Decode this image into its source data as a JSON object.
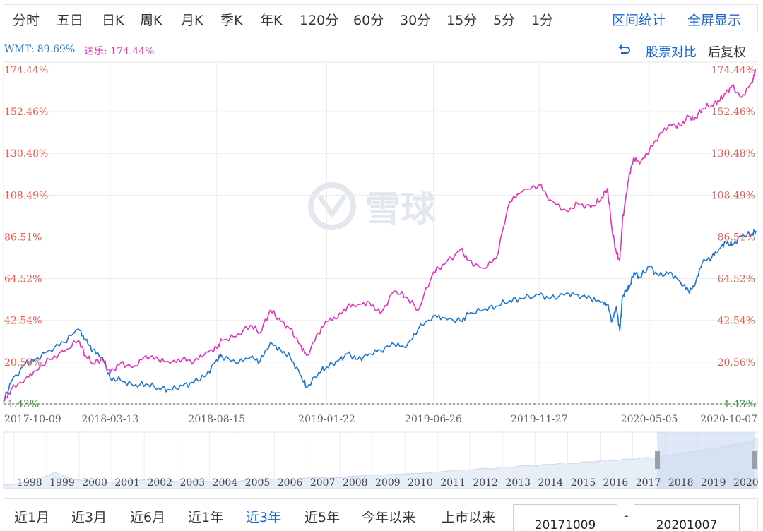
{
  "toolbar": {
    "periods": [
      "分时",
      "五日",
      "日K",
      "周K",
      "月K",
      "季K",
      "年K",
      "120分",
      "60分",
      "30分",
      "15分",
      "5分",
      "1分"
    ],
    "interval_stats": "区间统计",
    "fullscreen": "全屏显示"
  },
  "legend": {
    "wmt": "WMT: 89.69%",
    "dollar": "达乐: 174.44%"
  },
  "tools": {
    "compare": "股票对比",
    "adjust": "后复权"
  },
  "watermark": "雪球",
  "range_tabs": {
    "items": [
      "近1月",
      "近3月",
      "近6月",
      "近1年",
      "近3年",
      "近5年",
      "今年以来",
      "上市以来"
    ],
    "active_index": 4,
    "start_date": "20171009",
    "separator": "-",
    "end_date": "20201007"
  },
  "colors": {
    "wmt": "#1f77d4",
    "dollar": "#e331bb",
    "axis_red": "#e65a4d",
    "axis_green": "#3d9a3d",
    "link_blue": "#1a66d1"
  },
  "chart_data": {
    "type": "line",
    "y_unit": "%",
    "y_ticks": [
      "174.44%",
      "152.46%",
      "130.48%",
      "108.49%",
      "86.51%",
      "64.52%",
      "42.54%",
      "20.56%",
      "-1.43%"
    ],
    "ylim": [
      -1.43,
      174.44
    ],
    "x_ticks": [
      "2017-10-09",
      "2018-03-13",
      "2018-08-15",
      "2019-01-22",
      "2019-06-26",
      "2019-11-27",
      "2020-05-05",
      "2020-10-07"
    ],
    "grid": true,
    "series": [
      {
        "name": "WMT",
        "end_value": 89.69,
        "x": [
          "2017-10-09",
          "2017-10-20",
          "2017-11-10",
          "2017-11-24",
          "2017-12-15",
          "2018-01-05",
          "2018-01-26",
          "2018-02-05",
          "2018-02-16",
          "2018-03-02",
          "2018-03-13",
          "2018-03-28",
          "2018-04-16",
          "2018-05-04",
          "2018-05-22",
          "2018-06-08",
          "2018-06-26",
          "2018-07-13",
          "2018-07-31",
          "2018-08-15",
          "2018-08-22",
          "2018-09-12",
          "2018-10-03",
          "2018-10-17",
          "2018-11-01",
          "2018-11-16",
          "2018-11-30",
          "2018-12-14",
          "2018-12-24",
          "2019-01-10",
          "2019-01-22",
          "2019-02-07",
          "2019-02-21",
          "2019-03-08",
          "2019-03-25",
          "2019-04-10",
          "2019-04-30",
          "2019-05-17",
          "2019-06-04",
          "2019-06-26",
          "2019-07-12",
          "2019-08-05",
          "2019-08-16",
          "2019-09-06",
          "2019-09-25",
          "2019-10-15",
          "2019-11-01",
          "2019-11-27",
          "2019-12-13",
          "2020-01-06",
          "2020-01-22",
          "2020-02-10",
          "2020-02-24",
          "2020-03-05",
          "2020-03-12",
          "2020-03-18",
          "2020-03-23",
          "2020-03-27",
          "2020-04-01",
          "2020-04-06",
          "2020-04-13",
          "2020-04-21",
          "2020-05-05",
          "2020-05-19",
          "2020-06-04",
          "2020-06-19",
          "2020-07-01",
          "2020-07-09",
          "2020-07-21",
          "2020-08-04",
          "2020-08-14",
          "2020-08-24",
          "2020-09-02",
          "2020-09-16",
          "2020-10-01",
          "2020-10-07"
        ],
        "values": [
          0,
          10,
          20,
          22,
          27,
          31,
          38,
          32,
          27,
          23,
          12,
          11,
          8,
          9,
          7,
          6,
          8,
          10,
          14,
          22,
          24,
          20,
          23,
          21,
          31,
          27,
          23,
          14,
          7,
          15,
          18,
          21,
          25,
          22,
          25,
          27,
          30,
          28,
          38,
          45,
          44,
          42,
          46,
          48,
          50,
          53,
          54,
          56,
          54,
          57,
          56,
          54,
          52,
          51,
          42,
          50,
          37,
          55,
          58,
          60,
          68,
          65,
          71,
          66,
          68,
          63,
          58,
          60,
          73,
          76,
          80,
          84,
          82,
          87,
          88,
          89.69
        ]
      },
      {
        "name": "达乐",
        "end_value": 174.44,
        "x": [
          "2017-10-09",
          "2017-10-20",
          "2017-11-10",
          "2017-11-24",
          "2017-12-15",
          "2018-01-05",
          "2018-01-26",
          "2018-02-05",
          "2018-02-16",
          "2018-03-02",
          "2018-03-13",
          "2018-03-28",
          "2018-04-16",
          "2018-05-04",
          "2018-05-22",
          "2018-06-08",
          "2018-06-26",
          "2018-07-13",
          "2018-07-31",
          "2018-08-15",
          "2018-08-22",
          "2018-09-12",
          "2018-10-03",
          "2018-10-17",
          "2018-11-01",
          "2018-11-16",
          "2018-11-30",
          "2018-12-14",
          "2018-12-24",
          "2019-01-10",
          "2019-01-22",
          "2019-02-07",
          "2019-02-21",
          "2019-03-08",
          "2019-03-25",
          "2019-04-10",
          "2019-04-30",
          "2019-05-17",
          "2019-06-04",
          "2019-06-26",
          "2019-07-12",
          "2019-08-05",
          "2019-08-16",
          "2019-09-06",
          "2019-09-25",
          "2019-10-15",
          "2019-11-01",
          "2019-11-27",
          "2019-12-13",
          "2020-01-06",
          "2020-01-22",
          "2020-02-10",
          "2020-02-24",
          "2020-03-05",
          "2020-03-12",
          "2020-03-18",
          "2020-03-23",
          "2020-03-27",
          "2020-04-01",
          "2020-04-06",
          "2020-04-13",
          "2020-04-21",
          "2020-05-05",
          "2020-05-19",
          "2020-06-04",
          "2020-06-19",
          "2020-07-01",
          "2020-07-09",
          "2020-07-21",
          "2020-08-04",
          "2020-08-14",
          "2020-08-24",
          "2020-09-02",
          "2020-09-16",
          "2020-10-01",
          "2020-10-07"
        ],
        "values": [
          -1,
          6,
          12,
          16,
          22,
          26,
          32,
          24,
          20,
          22,
          15,
          20,
          18,
          24,
          22,
          20,
          22,
          21,
          26,
          28,
          32,
          34,
          40,
          36,
          48,
          42,
          38,
          30,
          24,
          36,
          42,
          44,
          50,
          51,
          52,
          46,
          58,
          55,
          48,
          68,
          72,
          80,
          74,
          70,
          75,
          105,
          110,
          114,
          106,
          100,
          104,
          102,
          106,
          112,
          90,
          78,
          74,
          95,
          108,
          120,
          128,
          125,
          132,
          140,
          146,
          145,
          150,
          148,
          154,
          156,
          158,
          162,
          166,
          160,
          168,
          174.44
        ]
      }
    ]
  },
  "navigator": {
    "years": [
      "1998",
      "1999",
      "2000",
      "2001",
      "2002",
      "2003",
      "2004",
      "2005",
      "2006",
      "2007",
      "2008",
      "2009",
      "2010",
      "2011",
      "2012",
      "2013",
      "2014",
      "2015",
      "2016",
      "2017",
      "2018",
      "2019",
      "2020"
    ],
    "overview_start_year": 1997.7,
    "overview_end_year": 2020.85,
    "window_start_year": 2017.77,
    "window_end_year": 2020.77,
    "overview_values": [
      4,
      5,
      7,
      9,
      13,
      18,
      14,
      10,
      9,
      8,
      7,
      8,
      9,
      9,
      10,
      9,
      9,
      8,
      8,
      9,
      8,
      8,
      9,
      8,
      10,
      9,
      10,
      11,
      10,
      11,
      12,
      12,
      13,
      12,
      14,
      14,
      15,
      15,
      16,
      16,
      17,
      17,
      18,
      19,
      20,
      21,
      21,
      23,
      22,
      24,
      24,
      26,
      25,
      27,
      27,
      29,
      28,
      30,
      30,
      32,
      31,
      33,
      33,
      35,
      34,
      37,
      38,
      40,
      42,
      44,
      45,
      48,
      50,
      52,
      56
    ]
  }
}
